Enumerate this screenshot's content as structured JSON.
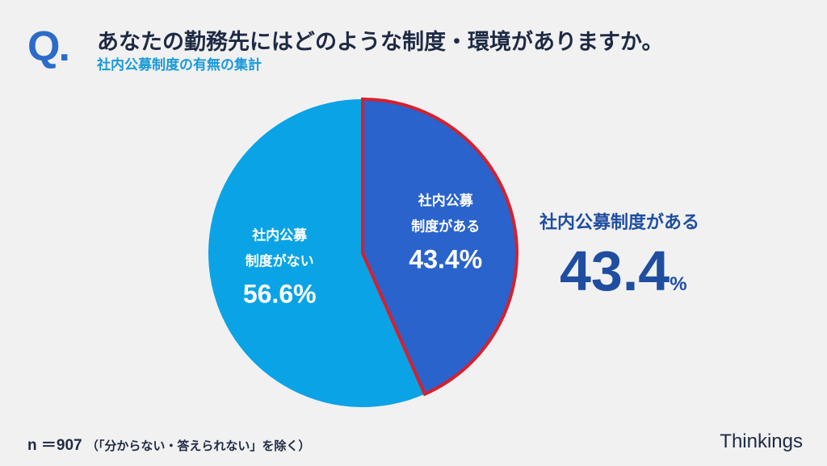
{
  "header": {
    "q_mark": "Q.",
    "title": "あなたの勤務先にはどのような制度・環境がありますか。",
    "subtitle": "社内公募制度の有無の集計"
  },
  "chart_data": {
    "type": "pie",
    "start": "top",
    "direction": "clockwise",
    "slices": [
      {
        "label_line1": "社内公募",
        "label_line2": "制度がある",
        "value": 43.4,
        "value_label": "43.4%",
        "color": "#2a63cb",
        "highlight_border": "#d7202c"
      },
      {
        "label_line1": "社内公募",
        "label_line2": "制度がない",
        "value": 56.6,
        "value_label": "56.6%",
        "color": "#0aa3e6"
      }
    ]
  },
  "callout": {
    "label": "社内公募制度がある",
    "value": "43.4",
    "unit": "%"
  },
  "footer": {
    "n": "n ＝907",
    "note": "（「分からない・答えられない」を除く）",
    "brand": "Thinkings"
  }
}
